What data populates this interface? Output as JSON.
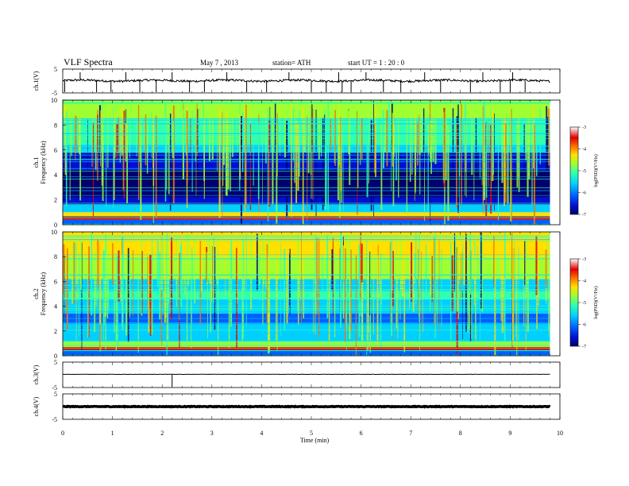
{
  "header": {
    "title": "VLF  Spectra",
    "date": "May 7  , 2013",
    "station": "station= ATH",
    "start": "start  UT  =   1  : 20 : 0"
  },
  "chart_data": [
    {
      "type": "line",
      "id": "ch1",
      "ylabel": "ch.1(V)",
      "ylim": [
        -5,
        5
      ],
      "yticks": [
        "5",
        "-5"
      ],
      "xlim": [
        0,
        10
      ],
      "baseline": 0.15,
      "spikes_at_min": [
        0.04,
        0.35,
        0.68,
        0.97,
        1.27,
        1.55,
        1.88,
        2.2,
        2.55,
        2.85,
        3.3,
        3.7,
        4.1,
        4.55,
        5.0,
        5.3,
        5.55,
        5.62,
        5.8,
        6.1,
        6.45,
        6.8,
        7.28,
        7.6,
        8.2,
        8.45,
        8.8,
        9.0,
        9.05,
        9.3
      ]
    },
    {
      "type": "heatmap",
      "id": "spec1",
      "ylabel": "ch.1\nFrequency  (kHz)",
      "xlim": [
        0,
        10
      ],
      "ylim": [
        0,
        10
      ],
      "yticks": [
        "10",
        "8",
        "6",
        "4",
        "2",
        "0"
      ],
      "z_label": "log(PSD)(V²/Hz)",
      "z_range": [
        -7,
        -3
      ],
      "z_ticks": [
        "-3",
        "-4",
        "-5",
        "-6",
        "-7"
      ],
      "colormap": [
        "#000070",
        "#0010d0",
        "#0060ff",
        "#00d0ff",
        "#30ffb0",
        "#a0ff30",
        "#ffe000",
        "#ff7000",
        "#e00000",
        "#ffffff"
      ],
      "data_end_min": 9.8
    },
    {
      "type": "heatmap",
      "id": "spec2",
      "ylabel": "ch.2\nFrequency  (kHz)",
      "xlim": [
        0,
        10
      ],
      "ylim": [
        0,
        10
      ],
      "yticks": [
        "10",
        "8",
        "6",
        "4",
        "2",
        "0"
      ],
      "z_label": "log(PSD)(V²/Hz)",
      "z_range": [
        -7,
        -3
      ],
      "z_ticks": [
        "-3",
        "-4",
        "-5",
        "-6",
        "-7"
      ],
      "colormap": [
        "#000070",
        "#0010d0",
        "#0060ff",
        "#00d0ff",
        "#30ffb0",
        "#a0ff30",
        "#ffe000",
        "#ff7000",
        "#e00000",
        "#ffffff"
      ],
      "data_end_min": 9.8
    },
    {
      "type": "line",
      "id": "ch3",
      "ylabel": "ch.3(V)",
      "ylim": [
        -5,
        5
      ],
      "yticks": [
        "5",
        "-5"
      ],
      "xlim": [
        0,
        10
      ],
      "baseline": 0.2,
      "spikes_at_min": [
        2.2
      ]
    },
    {
      "type": "line",
      "id": "ch4",
      "ylabel": "ch.4(V)",
      "ylim": [
        -5,
        5
      ],
      "yticks": [
        "5",
        "-5"
      ],
      "xlim": [
        0,
        10
      ],
      "baseline": 0.0,
      "spikes_at_min": []
    }
  ],
  "xaxis": {
    "label": "Time  (min)",
    "ticks": [
      "0",
      "1",
      "2",
      "3",
      "4",
      "5",
      "6",
      "7",
      "8",
      "9",
      "10"
    ]
  }
}
